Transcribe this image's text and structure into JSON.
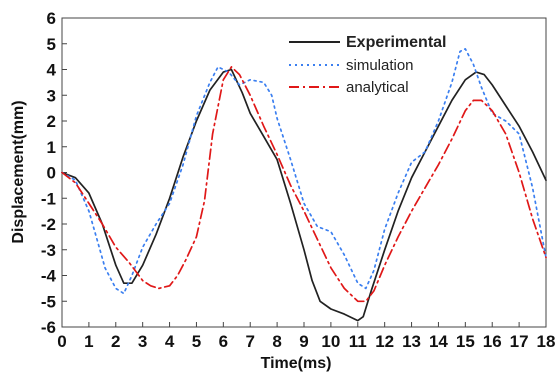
{
  "chart_data": {
    "type": "line",
    "title": "",
    "xlabel": "Time(ms)",
    "ylabel": "Displacement(mm)",
    "xlim": [
      0,
      18
    ],
    "ylim": [
      -6,
      6
    ],
    "x_ticks": [
      "0",
      "1",
      "2",
      "3",
      "4",
      "5",
      "6",
      "7",
      "8",
      "9",
      "10",
      "11",
      "12",
      "13",
      "14",
      "15",
      "16",
      "17",
      "18"
    ],
    "y_ticks": [
      "6",
      "5",
      "4",
      "3",
      "2",
      "1",
      "0",
      "-1",
      "-2",
      "-3",
      "-4",
      "-5",
      "-6"
    ],
    "grid": false,
    "legend_position": "top-right",
    "series": [
      {
        "name": "Experimental",
        "color": "#222222",
        "style": "solid",
        "x": [
          0,
          0.5,
          1,
          1.5,
          2,
          2.3,
          2.6,
          3,
          3.5,
          4,
          4.5,
          5,
          5.5,
          6,
          6.3,
          6.7,
          7,
          7.5,
          8,
          8.5,
          9,
          9.3,
          9.6,
          10,
          10.5,
          11,
          11.2,
          11.5,
          12,
          12.5,
          13,
          13.5,
          14,
          14.5,
          15,
          15.4,
          15.7,
          16,
          16.5,
          17,
          17.5,
          18
        ],
        "y": [
          0,
          -0.2,
          -0.8,
          -2.0,
          -3.6,
          -4.3,
          -4.3,
          -3.6,
          -2.4,
          -1.0,
          0.6,
          2.0,
          3.2,
          3.9,
          4.0,
          3.1,
          2.3,
          1.4,
          0.5,
          -1.2,
          -3.0,
          -4.2,
          -5.0,
          -5.3,
          -5.5,
          -5.75,
          -5.6,
          -4.6,
          -3.0,
          -1.5,
          -0.2,
          0.8,
          1.8,
          2.8,
          3.6,
          3.9,
          3.8,
          3.4,
          2.6,
          1.8,
          0.8,
          -0.3
        ]
      },
      {
        "name": "simulation",
        "color": "#3b7ff0",
        "style": "dotted",
        "x": [
          0,
          0.5,
          1,
          1.3,
          1.6,
          2,
          2.3,
          2.6,
          3,
          3.5,
          4,
          4.5,
          5,
          5.5,
          5.8,
          6.2,
          6.6,
          7,
          7.5,
          7.8,
          8,
          8.5,
          9,
          9.5,
          10,
          10.5,
          11,
          11.3,
          11.6,
          12,
          12.5,
          13,
          13.5,
          14,
          14.5,
          14.8,
          15,
          15.3,
          15.6,
          16,
          16.5,
          17,
          17.5,
          18
        ],
        "y": [
          0,
          -0.3,
          -1.5,
          -2.6,
          -3.7,
          -4.5,
          -4.7,
          -4.0,
          -2.9,
          -2.0,
          -1.2,
          0.3,
          2.2,
          3.5,
          4.1,
          3.9,
          3.4,
          3.6,
          3.5,
          3.0,
          2.1,
          0.5,
          -1.2,
          -2.1,
          -2.3,
          -3.2,
          -4.3,
          -4.5,
          -3.8,
          -2.2,
          -0.8,
          0.4,
          0.8,
          2.0,
          3.5,
          4.7,
          4.8,
          4.2,
          3.3,
          2.3,
          2.0,
          1.5,
          -0.6,
          -3.3
        ]
      },
      {
        "name": "analytical",
        "color": "#e01818",
        "style": "dashdot",
        "x": [
          0,
          0.5,
          1,
          1.5,
          2,
          2.5,
          3,
          3.3,
          3.6,
          4,
          4.3,
          4.6,
          5,
          5.3,
          5.6,
          6,
          6.3,
          6.6,
          7,
          7.5,
          8,
          8.5,
          9,
          9.5,
          10,
          10.5,
          11,
          11.3,
          11.6,
          12,
          12.5,
          13,
          13.5,
          14,
          14.5,
          15,
          15.3,
          15.6,
          16,
          16.5,
          17,
          17.5,
          18
        ],
        "y": [
          0,
          -0.4,
          -1.2,
          -2.0,
          -2.9,
          -3.5,
          -4.2,
          -4.4,
          -4.5,
          -4.4,
          -4.0,
          -3.4,
          -2.5,
          -1.1,
          1.5,
          3.6,
          4.1,
          3.8,
          3.0,
          1.8,
          0.7,
          -0.5,
          -1.5,
          -2.6,
          -3.7,
          -4.5,
          -5.0,
          -5.0,
          -4.6,
          -3.6,
          -2.5,
          -1.5,
          -0.6,
          0.3,
          1.3,
          2.4,
          2.8,
          2.8,
          2.4,
          1.5,
          0.0,
          -1.8,
          -3.3
        ]
      }
    ]
  }
}
